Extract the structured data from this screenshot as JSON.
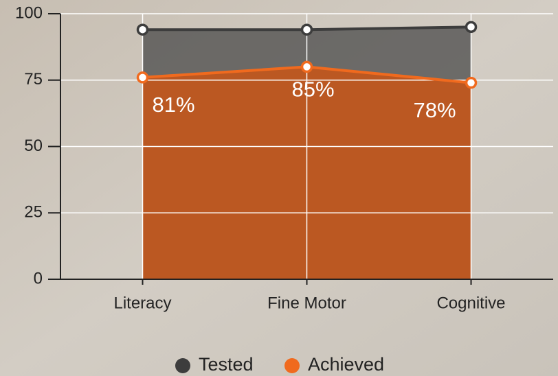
{
  "chart_data": {
    "type": "area",
    "categories": [
      "Literacy",
      "Fine Motor",
      "Cognitive"
    ],
    "series": [
      {
        "name": "Tested",
        "color": "#3d3d3d",
        "fill": "#4a4a4a",
        "values": [
          94,
          94,
          95
        ]
      },
      {
        "name": "Achieved",
        "color": "#f06a1e",
        "fill": "#c0571f",
        "values": [
          76,
          80,
          74
        ]
      }
    ],
    "annotations": [
      "81%",
      "85%",
      "78%"
    ],
    "ylim": [
      0,
      100
    ],
    "yticks": [
      0,
      25,
      50,
      75,
      100
    ],
    "grid": true,
    "legend": "bottom"
  }
}
